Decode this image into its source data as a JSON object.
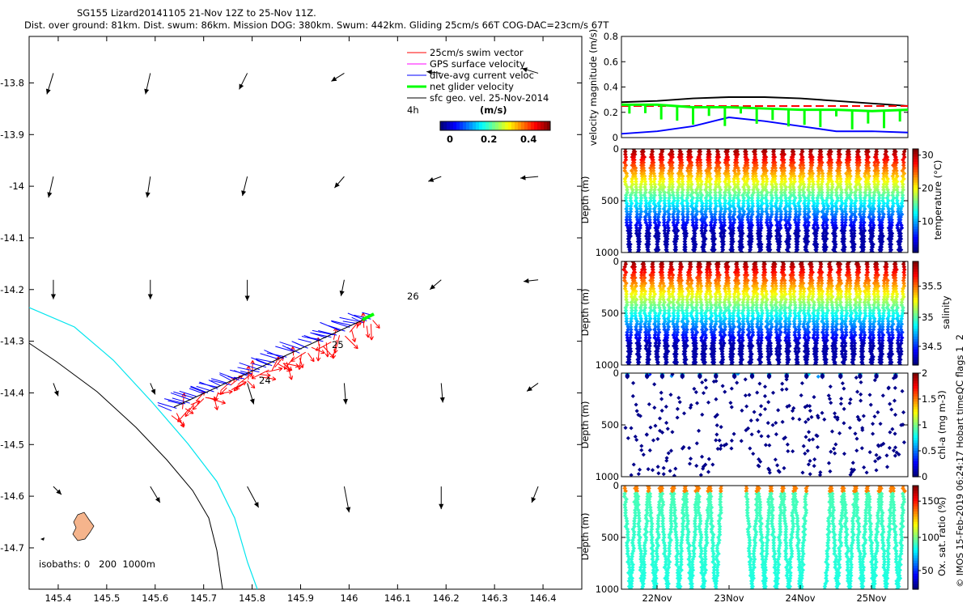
{
  "title": {
    "line1": "SG155 Lizard20141105 21-Nov 12Z to 25-Nov 11Z.",
    "line2": "Dist. over ground: 81km. Dist. swum: 86km. Mission DOG: 380km. Swum: 442km. Gliding 25cm/s 66T COG-DAC=23cm/s 67T"
  },
  "map": {
    "x_ticks": [
      "145.4",
      "145.5",
      "145.6",
      "145.7",
      "145.8",
      "145.9",
      "146",
      "146.1",
      "146.2",
      "146.3",
      "146.4"
    ],
    "y_ticks": [
      "-13.8",
      "-13.9",
      "-14",
      "-14.1",
      "-14.2",
      "-14.3",
      "-14.4",
      "-14.5",
      "-14.6",
      "-14.7"
    ],
    "xlim": [
      145.34,
      146.48
    ],
    "ylim": [
      -14.78,
      -13.71
    ],
    "legend": [
      {
        "label": "25cm/s swim vector",
        "color": "#ff0000"
      },
      {
        "label": "GPS surface velocity",
        "color": "#ff00ff"
      },
      {
        "label": "dive-avg current veloc",
        "color": "#0000ff"
      },
      {
        "label": "net glider velocity",
        "color": "#00ff00"
      },
      {
        "label": "sfc geo. vel. 25-Nov-2014",
        "color": "#000000"
      }
    ],
    "legend_note": "4h",
    "colorbar": {
      "label": "(m/s)",
      "ticks": [
        "0",
        "0.2",
        "0.4"
      ]
    },
    "day_labels": [
      "26",
      "25",
      "24"
    ],
    "isobaths_label": "isobaths: 0   200  1000m",
    "isobath_colors": {
      "0": "#000000",
      "200": "#00e5ee",
      "1000": "#000000"
    },
    "land_color": "#f5b48c"
  },
  "chart_data": [
    {
      "type": "line",
      "title": "",
      "ylabel": "velocity magnitude (m/s)",
      "ylim": [
        0,
        0.8
      ],
      "y_ticks": [
        "0",
        "0.2",
        "0.4",
        "0.6",
        "0.8"
      ],
      "x": [
        "21-Nov 12Z",
        "22-Nov 00Z",
        "22-Nov 12Z",
        "23-Nov 00Z",
        "23-Nov 12Z",
        "24-Nov 00Z",
        "24-Nov 12Z",
        "25-Nov 00Z",
        "25-Nov 11Z"
      ],
      "series": [
        {
          "name": "sfc geo. vel. 25-Nov-2014",
          "color": "#000000",
          "values": [
            0.28,
            0.29,
            0.31,
            0.32,
            0.32,
            0.31,
            0.29,
            0.27,
            0.25
          ]
        },
        {
          "name": "25cm/s swim vector",
          "color": "#ff0000",
          "values": [
            0.25,
            0.25,
            0.25,
            0.25,
            0.25,
            0.25,
            0.25,
            0.25,
            0.25
          ]
        },
        {
          "name": "net glider velocity",
          "color": "#00ff00",
          "values": [
            0.26,
            0.26,
            0.24,
            0.24,
            0.23,
            0.22,
            0.22,
            0.21,
            0.22
          ]
        },
        {
          "name": "dive-avg current veloc",
          "color": "#0000ff",
          "values": [
            0.03,
            0.05,
            0.09,
            0.16,
            0.13,
            0.09,
            0.05,
            0.05,
            0.04
          ]
        }
      ]
    },
    {
      "type": "scatter",
      "ylabel": "Depth (m)",
      "y_ticks": [
        "0",
        "500",
        "1000"
      ],
      "ylim": [
        1000,
        0
      ],
      "colorbar_label": "temperature (°C)",
      "colorbar_ticks": [
        "30",
        "20",
        "10"
      ],
      "dives": 30,
      "max_depth": 1000
    },
    {
      "type": "scatter",
      "ylabel": "Depth (m)",
      "y_ticks": [
        "0",
        "500",
        "1000"
      ],
      "ylim": [
        1000,
        0
      ],
      "colorbar_label": "salinity",
      "colorbar_ticks": [
        "35.5",
        "35",
        "34.5"
      ],
      "dives": 30,
      "max_depth": 1000
    },
    {
      "type": "scatter",
      "ylabel": "Depth (m)",
      "y_ticks": [
        "0",
        "500",
        "1000"
      ],
      "ylim": [
        1000,
        0
      ],
      "colorbar_label": "chl-a (mg m-3)",
      "colorbar_ticks": [
        "2",
        "1.5",
        "1",
        "0.5",
        "0"
      ],
      "dives": 30,
      "max_depth": 1000
    },
    {
      "type": "scatter",
      "ylabel": "Depth (m)",
      "y_ticks": [
        "0",
        "500",
        "1000"
      ],
      "ylim": [
        1000,
        0
      ],
      "colorbar_label": "Ox. sat. ratio (%)",
      "colorbar_ticks": [
        "150",
        "100",
        "50"
      ],
      "x_ticks": [
        "22Nov",
        "23Nov",
        "24Nov",
        "25Nov"
      ],
      "dives": 23,
      "max_depth": 1000
    }
  ],
  "side_note": "QC flags 1  2",
  "copyright": "© IMOS 15-Feb-2019 06:24:17 Hobart time."
}
